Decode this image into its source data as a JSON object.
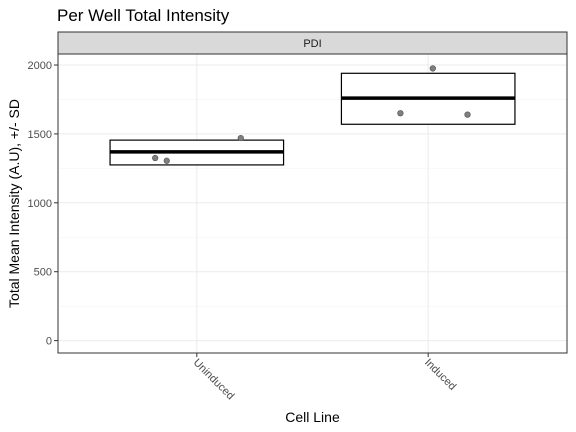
{
  "chart_data": {
    "type": "box",
    "title": "Per Well Total Intensity",
    "facet": "PDI",
    "xlabel": "Cell Line",
    "ylabel": "Total Mean Intensity (A.U), +/- SD",
    "categories": [
      "Uninduced",
      "Induced"
    ],
    "ylim": [
      -90,
      2080
    ],
    "yticks": [
      0,
      500,
      1000,
      1500,
      2000
    ],
    "grid": true,
    "boxes": [
      {
        "category": "Uninduced",
        "lower": 1275,
        "middle": 1370,
        "upper": 1455
      },
      {
        "category": "Induced",
        "lower": 1570,
        "middle": 1760,
        "upper": 1940
      }
    ],
    "points": [
      {
        "category": "Uninduced",
        "offset": -0.18,
        "value": 1325
      },
      {
        "category": "Uninduced",
        "offset": -0.13,
        "value": 1305
      },
      {
        "category": "Uninduced",
        "offset": 0.19,
        "value": 1470
      },
      {
        "category": "Induced",
        "offset": 0.02,
        "value": 1975
      },
      {
        "category": "Induced",
        "offset": -0.12,
        "value": 1650
      },
      {
        "category": "Induced",
        "offset": 0.17,
        "value": 1640
      }
    ],
    "colors": {
      "strip": "#d9d9d9",
      "box_fill": "#ffffff",
      "point": "#7f7f7f"
    }
  }
}
